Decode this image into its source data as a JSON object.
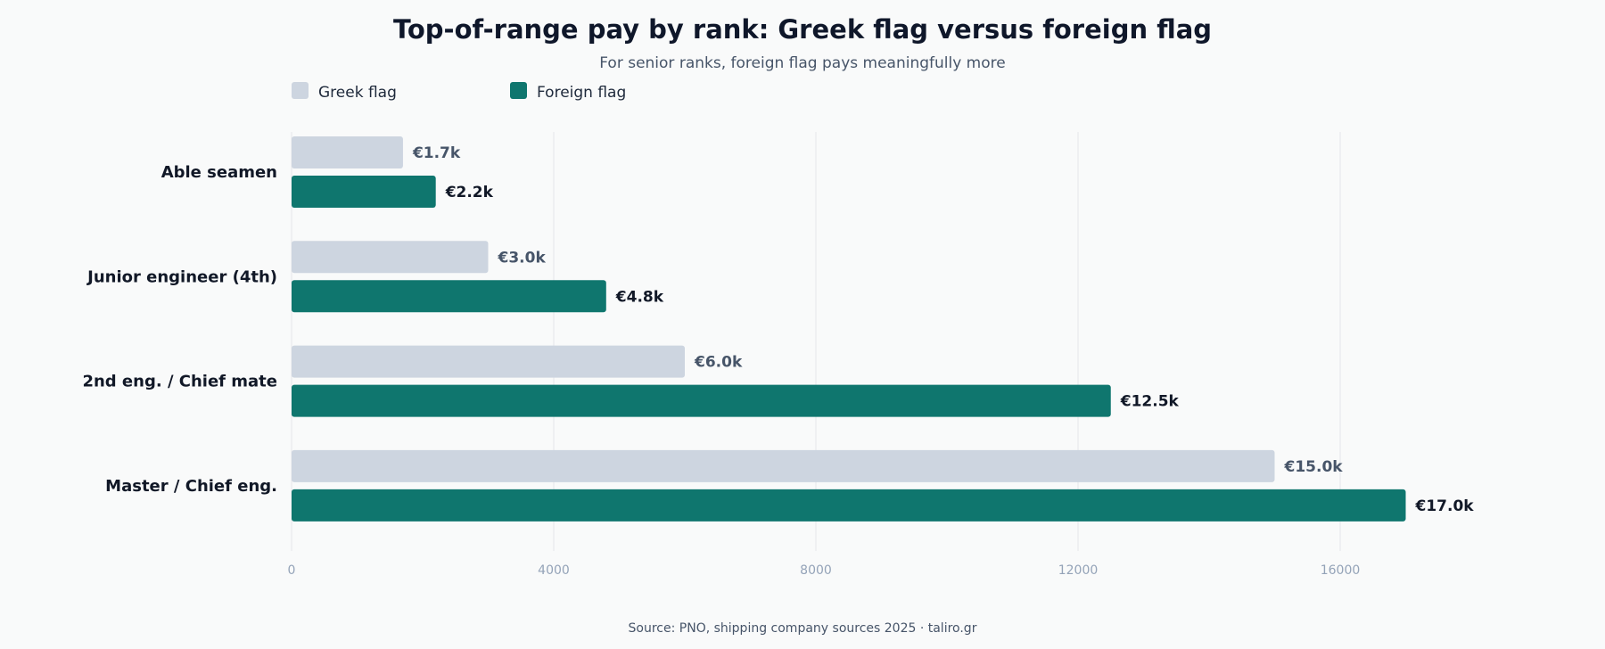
{
  "chart_data": {
    "type": "bar",
    "orientation": "horizontal",
    "title": "Top-of-range pay by rank: Greek flag versus foreign flag",
    "subtitle": "For senior ranks, foreign flag pays meaningfully more",
    "categories": [
      "Able seamen",
      "Junior engineer (4th)",
      "2nd eng. / Chief mate",
      "Master / Chief eng."
    ],
    "series": [
      {
        "name": "Greek flag",
        "color": "#cdd5e0",
        "values": [
          1700,
          3000,
          6000,
          15000
        ],
        "labels": [
          "€1.7k",
          "€3.0k",
          "€6.0k",
          "€15.0k"
        ]
      },
      {
        "name": "Foreign flag",
        "color": "#0f766e",
        "values": [
          2200,
          4800,
          12500,
          17000
        ],
        "labels": [
          "€2.2k",
          "€4.8k",
          "€12.5k",
          "€17.0k"
        ]
      }
    ],
    "xlim": [
      0,
      20000
    ],
    "xticks": [
      0,
      4000,
      8000,
      12000,
      16000
    ],
    "grid": true,
    "legend_position": "top-left",
    "source": "Source: PNO, shipping company sources 2025 · taliro.gr"
  }
}
